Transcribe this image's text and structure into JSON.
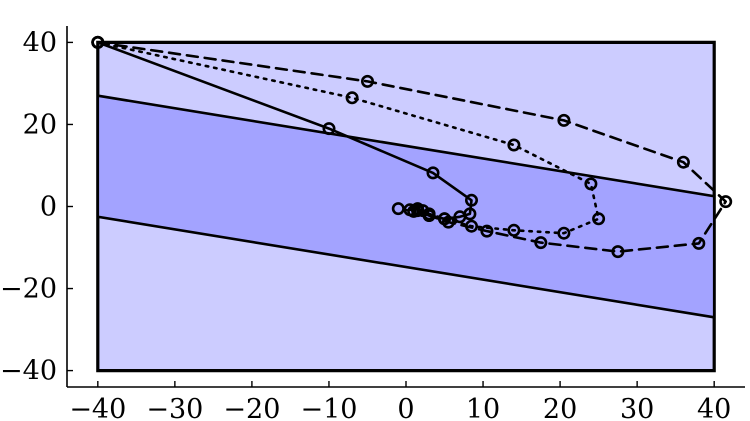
{
  "chart_data": {
    "type": "line",
    "title": "",
    "xlabel": "",
    "ylabel": "",
    "xlim": [
      -44,
      44
    ],
    "ylim": [
      -44,
      44
    ],
    "x_ticks": [
      -40,
      -30,
      -20,
      -10,
      0,
      10,
      20,
      30,
      40
    ],
    "y_ticks": [
      -40,
      -20,
      0,
      20,
      40
    ],
    "x_tick_labels": [
      "−40",
      "−30",
      "−20",
      "−10",
      "0",
      "10",
      "20",
      "30",
      "40"
    ],
    "y_tick_labels": [
      "−40",
      "−20",
      "0",
      "20",
      "40"
    ],
    "grid": false,
    "legend": "none",
    "colors": {
      "outer_region": "#ccccff",
      "inner_band": "#a3a3ff",
      "line": "#000000"
    },
    "regions": [
      {
        "name": "outer-box",
        "points": [
          [
            -40,
            -40
          ],
          [
            40,
            -40
          ],
          [
            40,
            40
          ],
          [
            -40,
            40
          ]
        ]
      },
      {
        "name": "inner-band",
        "points": [
          [
            -40,
            27
          ],
          [
            40,
            2.5
          ],
          [
            40,
            -27
          ],
          [
            -40,
            -2.5
          ]
        ]
      }
    ],
    "series": [
      {
        "style": "solid",
        "points": [
          [
            -40,
            40
          ],
          [
            -10,
            19
          ],
          [
            3.5,
            8.2
          ],
          [
            8.5,
            1.5
          ],
          [
            8.3,
            -1.8
          ],
          [
            7,
            -2.5
          ],
          [
            5,
            -3
          ],
          [
            3,
            -2.2
          ],
          [
            2.2,
            -1
          ],
          [
            1.5,
            -0.5
          ],
          [
            0.5,
            -0.8
          ]
        ]
      },
      {
        "style": "dashed",
        "points": [
          [
            -40,
            40
          ],
          [
            -5,
            30.5
          ],
          [
            20.5,
            21
          ],
          [
            36,
            10.8
          ],
          [
            41.5,
            1.2
          ],
          [
            38,
            -9
          ],
          [
            27.5,
            -11
          ],
          [
            17.5,
            -8.8
          ],
          [
            10.5,
            -6
          ],
          [
            5.5,
            -3.8
          ],
          [
            3,
            -2.2
          ],
          [
            1.5,
            -1
          ]
        ]
      },
      {
        "style": "dotted",
        "points": [
          [
            -40,
            40
          ],
          [
            -7,
            26.5
          ],
          [
            14,
            15
          ],
          [
            24,
            5.5
          ],
          [
            25,
            -3
          ],
          [
            20.5,
            -6.5
          ],
          [
            14,
            -5.8
          ],
          [
            8.5,
            -4.8
          ],
          [
            5,
            -3
          ],
          [
            3,
            -1.8
          ],
          [
            1,
            -1.2
          ],
          [
            -1,
            -0.5
          ]
        ]
      }
    ]
  }
}
